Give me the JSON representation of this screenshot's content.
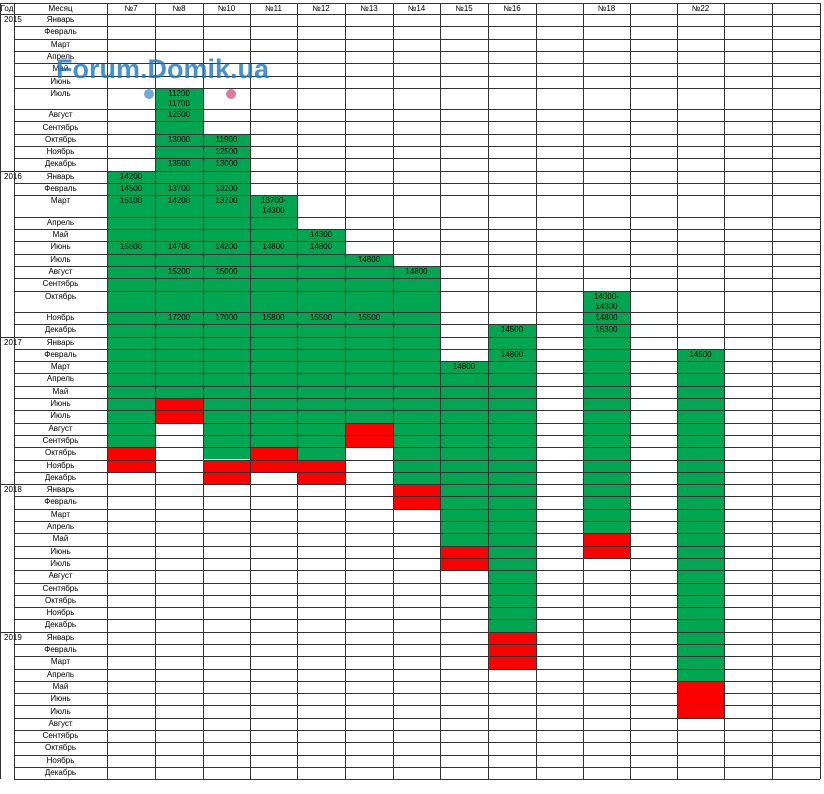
{
  "header": {
    "year_label": "Год",
    "month_label": "Месяц",
    "columns": [
      "№7",
      "№8",
      "№10",
      "№11",
      "№12",
      "№13",
      "№14",
      "№15",
      "№16",
      "",
      "№18",
      "",
      "№22",
      ""
    ]
  },
  "years": [
    "2015",
    "2016",
    "2017",
    "2018",
    "2019"
  ],
  "months": [
    "Январь",
    "Февраль",
    "Март",
    "Апрель",
    "Май",
    "Июнь",
    "Июль",
    "Август",
    "Сентябрь",
    "Октябрь",
    "Ноябрь",
    "Декабрь"
  ],
  "watermark": "Forum.Domik.ua",
  "colors": {
    "green": "#00a651",
    "red": "#ff0000",
    "grid": "#333333",
    "watermark": "#1a78c2"
  },
  "prices": [
    {
      "col": "№8",
      "year": "2015",
      "month": "Июль",
      "text": "11200\n11700"
    },
    {
      "col": "№8",
      "year": "2015",
      "month": "Август",
      "text": "12500"
    },
    {
      "col": "№8",
      "year": "2015",
      "month": "Октябрь",
      "text": "13000"
    },
    {
      "col": "№10",
      "year": "2015",
      "month": "Октябрь",
      "text": "11900"
    },
    {
      "col": "№10",
      "year": "2015",
      "month": "Ноябрь",
      "text": "12500"
    },
    {
      "col": "№8",
      "year": "2015",
      "month": "Декабрь",
      "text": "13500"
    },
    {
      "col": "№10",
      "year": "2015",
      "month": "Декабрь",
      "text": "13000"
    },
    {
      "col": "№7",
      "year": "2016",
      "month": "Январь",
      "text": "14200"
    },
    {
      "col": "№7",
      "year": "2016",
      "month": "Февраль",
      "text": "14500"
    },
    {
      "col": "№8",
      "year": "2016",
      "month": "Февраль",
      "text": "13700"
    },
    {
      "col": "№10",
      "year": "2016",
      "month": "Февраль",
      "text": "13200"
    },
    {
      "col": "№7",
      "year": "2016",
      "month": "Март",
      "text": "15100"
    },
    {
      "col": "№8",
      "year": "2016",
      "month": "Март",
      "text": "14200"
    },
    {
      "col": "№10",
      "year": "2016",
      "month": "Март",
      "text": "13700"
    },
    {
      "col": "№11",
      "year": "2016",
      "month": "Март",
      "text": "13700-\n14300"
    },
    {
      "col": "№12",
      "year": "2016",
      "month": "Май",
      "text": "14300"
    },
    {
      "col": "№7",
      "year": "2016",
      "month": "Июнь",
      "text": "15600"
    },
    {
      "col": "№8",
      "year": "2016",
      "month": "Июнь",
      "text": "14700"
    },
    {
      "col": "№10",
      "year": "2016",
      "month": "Июнь",
      "text": "14200"
    },
    {
      "col": "№11",
      "year": "2016",
      "month": "Июнь",
      "text": "14800"
    },
    {
      "col": "№12",
      "year": "2016",
      "month": "Июнь",
      "text": "14800"
    },
    {
      "col": "№13",
      "year": "2016",
      "month": "Июль",
      "text": "14800"
    },
    {
      "col": "№8",
      "year": "2016",
      "month": "Август",
      "text": "15200"
    },
    {
      "col": "№10",
      "year": "2016",
      "month": "Август",
      "text": "15000"
    },
    {
      "col": "№14",
      "year": "2016",
      "month": "Август",
      "text": "14800"
    },
    {
      "col": "№18",
      "year": "2016",
      "month": "Октябрь",
      "text": "14000-\n14300"
    },
    {
      "col": "№8",
      "year": "2016",
      "month": "Ноябрь",
      "text": "17200"
    },
    {
      "col": "№10",
      "year": "2016",
      "month": "Ноябрь",
      "text": "17000"
    },
    {
      "col": "№11",
      "year": "2016",
      "month": "Ноябрь",
      "text": "15800"
    },
    {
      "col": "№12",
      "year": "2016",
      "month": "Ноябрь",
      "text": "15500"
    },
    {
      "col": "№13",
      "year": "2016",
      "month": "Ноябрь",
      "text": "15500"
    },
    {
      "col": "№18",
      "year": "2016",
      "month": "Ноябрь",
      "text": "14800"
    },
    {
      "col": "№16",
      "year": "2016",
      "month": "Декабрь",
      "text": "14500"
    },
    {
      "col": "№18",
      "year": "2016",
      "month": "Декабрь",
      "text": "15300"
    },
    {
      "col": "№16",
      "year": "2017",
      "month": "Февраль",
      "text": "14800"
    },
    {
      "col": "№22",
      "year": "2017",
      "month": "Февраль",
      "text": "14500"
    },
    {
      "col": "№15",
      "year": "2017",
      "month": "Март",
      "text": "14800"
    }
  ],
  "green_spans": [
    {
      "col": "№8",
      "from": "2015-Июль",
      "to": "2017-Май"
    },
    {
      "col": "№10",
      "from": "2015-Октябрь",
      "to": "2017-Октябрь"
    },
    {
      "col": "№7",
      "from": "2016-Январь",
      "to": "2017-Сентябрь"
    },
    {
      "col": "№11",
      "from": "2016-Март",
      "to": "2017-Сентябрь"
    },
    {
      "col": "№12",
      "from": "2016-Май",
      "to": "2017-Октябрь"
    },
    {
      "col": "№13",
      "from": "2016-Июль",
      "to": "2017-Июль"
    },
    {
      "col": "№14",
      "from": "2016-Август",
      "to": "2017-Декабрь"
    },
    {
      "col": "№18",
      "from": "2016-Октябрь",
      "to": "2018-Апрель"
    },
    {
      "col": "№16",
      "from": "2016-Декабрь",
      "to": "2018-Декабрь"
    },
    {
      "col": "№15",
      "from": "2017-Март",
      "to": "2018-Май"
    },
    {
      "col": "№22",
      "from": "2017-Февраль",
      "to": "2019-Апрель"
    }
  ],
  "red_spans": [
    {
      "col": "№8",
      "from": "2017-Июнь",
      "to": "2017-Июль"
    },
    {
      "col": "№13",
      "from": "2017-Август",
      "to": "2017-Сентябрь"
    },
    {
      "col": "№7",
      "from": "2017-Октябрь",
      "to": "2017-Ноябрь"
    },
    {
      "col": "№11",
      "from": "2017-Октябрь",
      "to": "2017-Ноябрь"
    },
    {
      "col": "№10",
      "from": "2017-Ноябрь",
      "to": "2017-Декабрь"
    },
    {
      "col": "№12",
      "from": "2017-Ноябрь",
      "to": "2017-Декабрь"
    },
    {
      "col": "№14",
      "from": "2018-Январь",
      "to": "2018-Февраль"
    },
    {
      "col": "№18",
      "from": "2018-Май",
      "to": "2018-Июнь"
    },
    {
      "col": "№15",
      "from": "2018-Июнь",
      "to": "2018-Июль"
    },
    {
      "col": "№16",
      "from": "2019-Январь",
      "to": "2019-Март"
    },
    {
      "col": "№22",
      "from": "2019-Май",
      "to": "2019-Июль"
    }
  ]
}
